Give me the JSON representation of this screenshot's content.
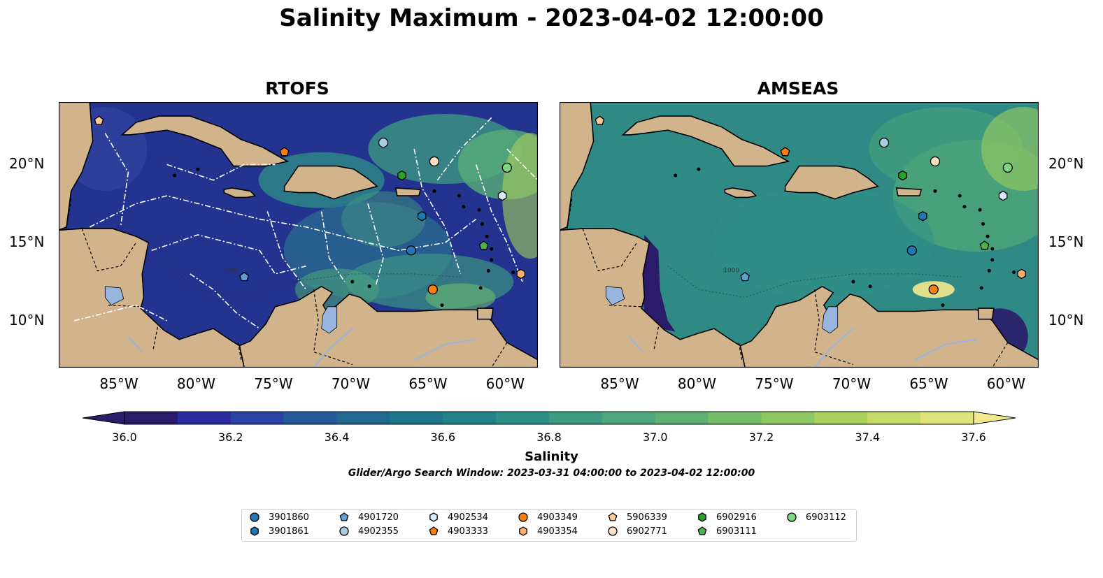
{
  "figure": {
    "title": "Salinity Maximum - 2023-04-02 12:00:00"
  },
  "panels": [
    {
      "id": "rtofs",
      "title": "RTOFS"
    },
    {
      "id": "amseas",
      "title": "AMSEAS"
    }
  ],
  "map": {
    "extent": {
      "lon_min": -89,
      "lon_max": -58,
      "lat_min": 7,
      "lat_max": 24
    },
    "x_ticks": [
      {
        "lon": -85,
        "label": "85°W"
      },
      {
        "lon": -80,
        "label": "80°W"
      },
      {
        "lon": -75,
        "label": "75°W"
      },
      {
        "lon": -70,
        "label": "70°W"
      },
      {
        "lon": -65,
        "label": "65°W"
      },
      {
        "lon": -60,
        "label": "60°W"
      }
    ],
    "y_ticks": [
      {
        "lat": 20,
        "label": "20°N"
      },
      {
        "lat": 15,
        "label": "15°N"
      },
      {
        "lat": 10,
        "label": "10°N"
      }
    ],
    "colors": {
      "land": "#d2b48c",
      "lake": "#98b5e0",
      "eez_line": "#ffffff"
    },
    "contour_label": "1000"
  },
  "colorbar": {
    "title": "Salinity",
    "min": 36.0,
    "max": 37.6,
    "step": 0.1,
    "extend": "both",
    "ticks": [
      {
        "value": 36.0,
        "label": "36.0"
      },
      {
        "value": 36.2,
        "label": "36.2"
      },
      {
        "value": 36.4,
        "label": "36.4"
      },
      {
        "value": 36.6,
        "label": "36.6"
      },
      {
        "value": 36.8,
        "label": "36.8"
      },
      {
        "value": 37.0,
        "label": "37.0"
      },
      {
        "value": 37.2,
        "label": "37.2"
      },
      {
        "value": 37.4,
        "label": "37.4"
      },
      {
        "value": 37.6,
        "label": "37.6"
      }
    ],
    "colors": [
      "#2a1c6b",
      "#2b2c9e",
      "#2a43a5",
      "#255999",
      "#21698f",
      "#1f778c",
      "#23838a",
      "#2e8f86",
      "#3e9a80",
      "#4fa67a",
      "#5fb173",
      "#74bd6b",
      "#8fc862",
      "#a9d35c",
      "#c3dc68",
      "#dfe47a",
      "#f4e88c"
    ]
  },
  "search_window": "Glider/Argo Search Window: 2023-03-31 04:00:00 to 2023-04-02 12:00:00",
  "floats": [
    {
      "id": "3901860",
      "marker": "circle",
      "color": "#1f77b4",
      "lon": -66.2,
      "lat": 14.5
    },
    {
      "id": "3901861",
      "marker": "hexagon",
      "color": "#1f77b4",
      "lon": -65.5,
      "lat": 16.7
    },
    {
      "id": "4901720",
      "marker": "pentagon",
      "color": "#5f9fd3",
      "lon": -77.0,
      "lat": 12.8
    },
    {
      "id": "4902355",
      "marker": "circle",
      "color": "#a6cee3",
      "lon": -68.0,
      "lat": 21.4
    },
    {
      "id": "4902534",
      "marker": "hexagon",
      "color": "#d6ecfa",
      "lon": -60.3,
      "lat": 18.0
    },
    {
      "id": "4903333",
      "marker": "pentagon",
      "color": "#ff7f0e",
      "lon": -74.4,
      "lat": 20.8
    },
    {
      "id": "4903349",
      "marker": "circle",
      "color": "#ff7f0e",
      "lon": -64.8,
      "lat": 12.0
    },
    {
      "id": "4903354",
      "marker": "hexagon",
      "color": "#ffb071",
      "lon": -59.1,
      "lat": 13.0
    },
    {
      "id": "5906339",
      "marker": "pentagon",
      "color": "#ffc896",
      "lon": -86.4,
      "lat": 22.8
    },
    {
      "id": "6902771",
      "marker": "circle",
      "color": "#ffe0c2",
      "lon": -64.7,
      "lat": 20.2
    },
    {
      "id": "6902916",
      "marker": "hexagon",
      "color": "#2ca02c",
      "lon": -66.8,
      "lat": 19.3
    },
    {
      "id": "6903111",
      "marker": "pentagon",
      "color": "#4cb34c",
      "lon": -61.5,
      "lat": 14.8
    },
    {
      "id": "6903112",
      "marker": "circle",
      "color": "#7ed67e",
      "lon": -60.0,
      "lat": 19.8
    }
  ]
}
